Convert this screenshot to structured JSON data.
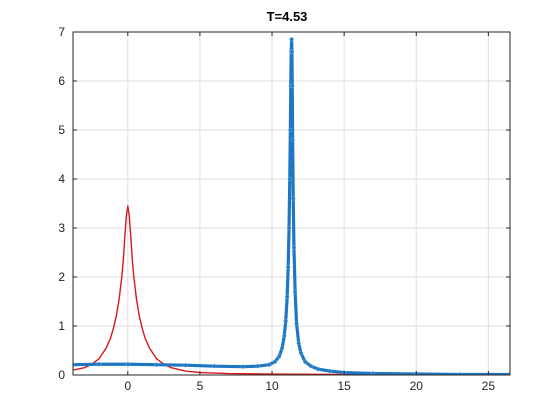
{
  "chart_data": {
    "type": "line",
    "title": "T=4.53",
    "xlabel": "",
    "ylabel": "",
    "xlim": [
      -3.8,
      26.5
    ],
    "ylim": [
      0,
      7
    ],
    "xticks": [
      0,
      5,
      10,
      15,
      20,
      25
    ],
    "yticks": [
      0,
      1,
      2,
      3,
      4,
      5,
      6,
      7
    ],
    "grid": true,
    "legend": "none",
    "series": [
      {
        "color": "#d7191c",
        "style": "thin-line",
        "x": [
          -3.8,
          -3.0,
          -2.5,
          -2.0,
          -1.5,
          -1.2,
          -1.0,
          -0.8,
          -0.6,
          -0.4,
          -0.3,
          -0.2,
          -0.1,
          0.0,
          0.1,
          0.2,
          0.3,
          0.4,
          0.6,
          0.8,
          1.0,
          1.2,
          1.5,
          2.0,
          2.5,
          3.0,
          4.0,
          5.0,
          7.0,
          10.0,
          15.0,
          20.0,
          26.5
        ],
        "y": [
          0.1,
          0.15,
          0.22,
          0.33,
          0.55,
          0.75,
          0.95,
          1.2,
          1.55,
          2.05,
          2.4,
          2.85,
          3.25,
          3.45,
          3.25,
          2.85,
          2.4,
          2.05,
          1.55,
          1.2,
          0.95,
          0.75,
          0.55,
          0.33,
          0.22,
          0.15,
          0.08,
          0.05,
          0.03,
          0.02,
          0.01,
          0.01,
          0.01
        ]
      },
      {
        "color": "#1f77c4",
        "style": "thick-line-markers",
        "x": [
          -3.8,
          -2.0,
          0.0,
          2.0,
          4.0,
          6.0,
          8.0,
          9.0,
          9.8,
          10.2,
          10.5,
          10.7,
          10.85,
          10.95,
          11.05,
          11.12,
          11.18,
          11.23,
          11.27,
          11.3,
          11.33,
          11.36,
          11.38,
          11.4,
          11.43,
          11.47,
          11.52,
          11.6,
          11.7,
          11.85,
          12.0,
          12.3,
          12.7,
          13.2,
          14.0,
          15.0,
          17.0,
          20.0,
          23.0,
          26.5
        ],
        "y": [
          0.21,
          0.22,
          0.22,
          0.21,
          0.2,
          0.18,
          0.17,
          0.18,
          0.21,
          0.27,
          0.38,
          0.55,
          0.8,
          1.1,
          1.6,
          2.2,
          3.0,
          4.0,
          5.0,
          5.9,
          6.6,
          6.85,
          6.6,
          5.9,
          4.8,
          3.6,
          2.6,
          1.7,
          1.05,
          0.65,
          0.45,
          0.27,
          0.18,
          0.12,
          0.08,
          0.05,
          0.03,
          0.02,
          0.01,
          0.01
        ]
      }
    ]
  }
}
